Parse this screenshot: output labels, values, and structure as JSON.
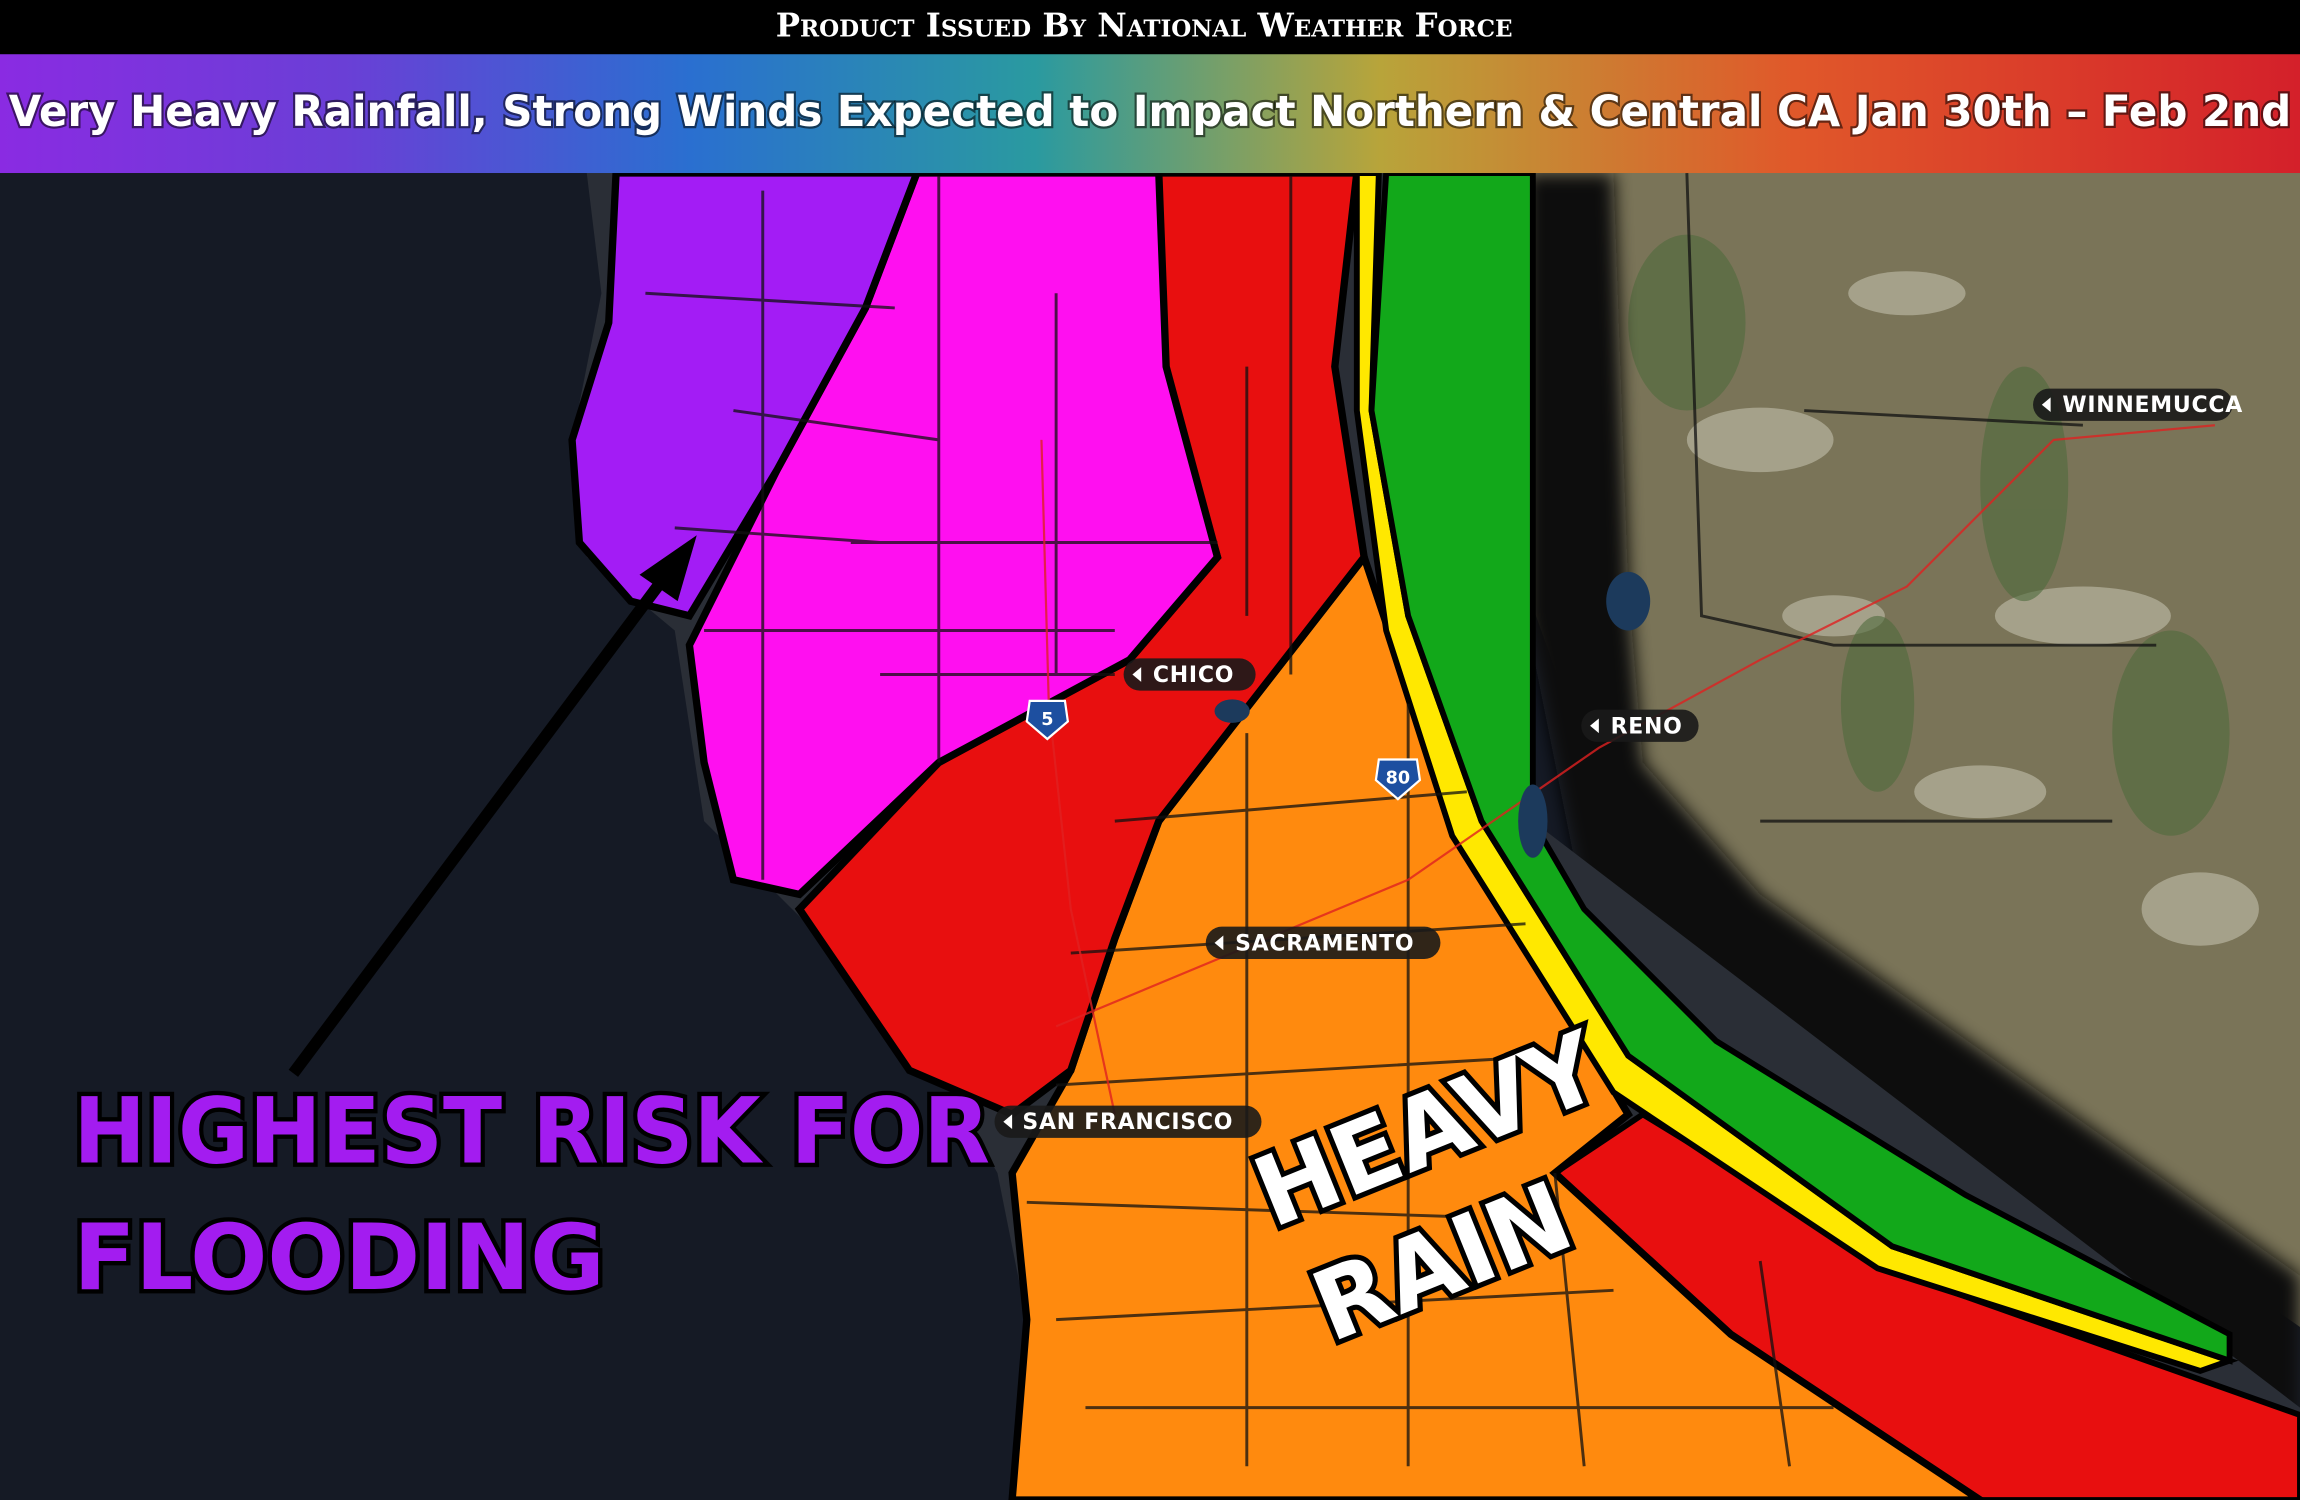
{
  "header": {
    "issuer": "Product Issued By National Weather Force",
    "title": "Very Heavy Rainfall, Strong Winds Expected to Impact Northern & Central CA Jan 30th – Feb 2nd"
  },
  "cities": [
    "CHICO",
    "RENO",
    "WINNEMUCCA",
    "SACRAMENTO",
    "SAN FRANCISCO"
  ],
  "highways": [
    "5",
    "80"
  ],
  "annotations": {
    "flood_risk": [
      "HIGHEST RISK FOR",
      "FLOODING"
    ],
    "heavy_rain": [
      "HEAVY",
      "RAIN"
    ]
  }
}
